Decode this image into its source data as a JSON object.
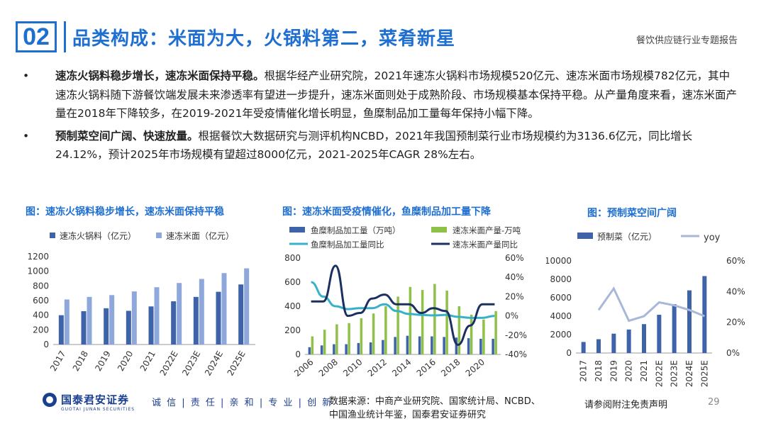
{
  "header": {
    "section_number": "02",
    "title": "品类构成：米面为大，火锅料第二，菜肴新星",
    "report_name": "餐饮供应链行业专题报告"
  },
  "bullets": [
    {
      "marker": "•",
      "bold": "速冻火锅料稳步增长，速冻米面保持平稳。",
      "text": "根据华经产业研究院，2021年速冻火锅料市场规模520亿元、速冻米面市场规模782亿元，其中速冻火锅料随下游餐饮端发展未来渗透率有望进一步提升，速冻米面则处于成熟阶段、市场规模基本保持平稳。从产量角度来看，速冻米面产量在2018年下降较多，在2019-2021年受疫情催化增长明显，鱼糜制品加工量每年保持小幅下降。"
    },
    {
      "marker": "•",
      "bold": "预制菜空间广阔、快速放量。",
      "text": "根据餐饮大数据研究与测评机构NCBD，2021年我国预制菜行业市场规模约为3136.6亿元，同比增长24.12%，预计2025年市场规模有望超过8000亿元，2021-2025年CAGR 28%左右。"
    }
  ],
  "colors": {
    "accent": "#1f6fd1",
    "dark_blue": "#3e63a8",
    "light_blue": "#8fa8dc",
    "green": "#8fc14a",
    "teal": "#36b1c9",
    "navy": "#1b3060",
    "yoy_line": "#a9b8d8"
  },
  "chart_data": [
    {
      "type": "bar",
      "title": "图：速冻火锅料稳步增长，速冻米面保持平稳",
      "categories": [
        "2017",
        "2018",
        "2019",
        "2020",
        "2021",
        "2022E",
        "2023E",
        "2024E",
        "2025E"
      ],
      "series": [
        {
          "name": "速冻火锅料（亿元）",
          "values": [
            400,
            455,
            495,
            460,
            520,
            590,
            650,
            720,
            820
          ]
        },
        {
          "name": "速冻米面（亿元）",
          "values": [
            615,
            650,
            675,
            725,
            782,
            840,
            895,
            975,
            1040
          ]
        }
      ],
      "ylim": [
        0,
        1200
      ],
      "yticks": [
        0,
        200,
        400,
        600,
        800,
        1000,
        1200
      ],
      "legend": "top"
    },
    {
      "type": "bar",
      "title": "图：速冻米面受疫情催化，鱼糜制品加工量下降",
      "categories": [
        "2006",
        "2007",
        "2008",
        "2009",
        "2010",
        "2011",
        "2012",
        "2013",
        "2014",
        "2015",
        "2016",
        "2017",
        "2018",
        "2019",
        "2020",
        "2021"
      ],
      "xticks": [
        "2006",
        "2008",
        "2010",
        "2012",
        "2014",
        "2016",
        "2018",
        "2020"
      ],
      "series": [
        {
          "name": "鱼糜制品加工量（万吨）",
          "kind": "bar",
          "axis": "left",
          "values": [
            60,
            75,
            85,
            85,
            95,
            100,
            120,
            145,
            155,
            150,
            150,
            145,
            140,
            135,
            130,
            130
          ]
        },
        {
          "name": "速冻米面产量-万吨",
          "kind": "bar",
          "axis": "left",
          "values": [
            150,
            205,
            250,
            260,
            300,
            340,
            400,
            480,
            560,
            535,
            585,
            530,
            400,
            330,
            290,
            360
          ]
        },
        {
          "name": "鱼糜制品加工量同比",
          "kind": "line",
          "axis": "right",
          "values": [
            35,
            20,
            10,
            7,
            8,
            8,
            12,
            5,
            2,
            1,
            0.5,
            1,
            -1,
            -2,
            -2,
            0
          ]
        },
        {
          "name": "速冻米面产量同比",
          "kind": "line",
          "axis": "right",
          "values": [
            15,
            15,
            52,
            0,
            3,
            18,
            22,
            12,
            12,
            3,
            8,
            5,
            -30,
            -10,
            12,
            12
          ]
        }
      ],
      "ylim_left": [
        0,
        800
      ],
      "yticks_left": [
        0,
        200,
        400,
        600,
        800
      ],
      "ylim_right": [
        -40,
        60
      ],
      "yticks_right": [
        "-40%",
        "-20%",
        "0%",
        "20%",
        "40%",
        "60%"
      ],
      "yticks_right_values": [
        -40,
        -20,
        0,
        20,
        40,
        60
      ],
      "legend": "top"
    },
    {
      "type": "bar",
      "title": "图：预制菜空间广阔",
      "categories": [
        "2017",
        "2018",
        "2019",
        "2020",
        "2021",
        "2022E",
        "2023E",
        "2024E",
        "2025E"
      ],
      "series": [
        {
          "name": "预制菜（亿元）",
          "kind": "bar",
          "axis": "left",
          "values": [
            1200,
            1500,
            2100,
            2550,
            3136.6,
            4150,
            5300,
            6800,
            8350
          ]
        },
        {
          "name": "yoy",
          "kind": "line",
          "axis": "right",
          "values": [
            null,
            28,
            42,
            21,
            24,
            33,
            31,
            28,
            24
          ]
        }
      ],
      "ylim_left": [
        0,
        10000
      ],
      "yticks_left": [
        0,
        2000,
        4000,
        6000,
        8000,
        10000
      ],
      "ylim_right": [
        0,
        60
      ],
      "yticks_right": [
        "0%",
        "20%",
        "40%",
        "60%"
      ],
      "yticks_right_values": [
        0,
        20,
        40,
        60
      ],
      "legend": "top"
    }
  ],
  "footer": {
    "logo_text": "国泰君安证券",
    "logo_sub": "GUOTAI JUNAN SECURITIES",
    "slogan": "诚 信 | 责 任 | 亲 和 | 专 业 | 创 新",
    "source_line1": "数据来源：中商产业研究院、国家统计局、NCBD、",
    "source_line2": "中国渔业统计年鉴，国泰君安证券研究",
    "disclaimer": "请参阅附注免责声明",
    "page_number": "29"
  }
}
